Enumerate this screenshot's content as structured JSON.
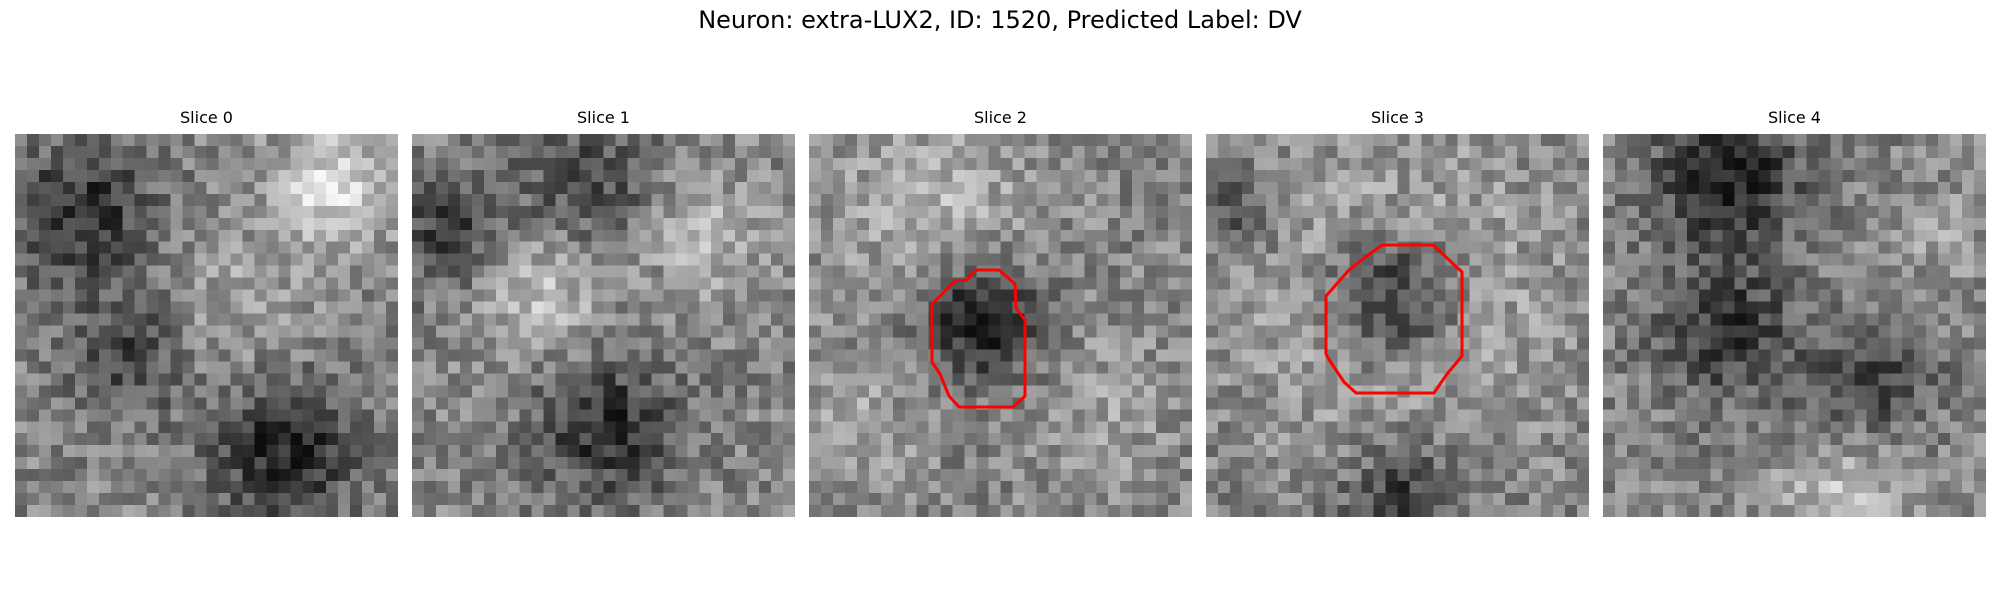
{
  "figure": {
    "suptitle": "Neuron: extra-LUX2, ID: 1520, Predicted Label: DV",
    "colormap": "gray",
    "contour_color": "#ff0000",
    "panels": [
      {
        "title": "Slice 0",
        "has_contour": false
      },
      {
        "title": "Slice 1",
        "has_contour": false
      },
      {
        "title": "Slice 2",
        "has_contour": true
      },
      {
        "title": "Slice 3",
        "has_contour": true
      },
      {
        "title": "Slice 4",
        "has_contour": false
      }
    ]
  }
}
